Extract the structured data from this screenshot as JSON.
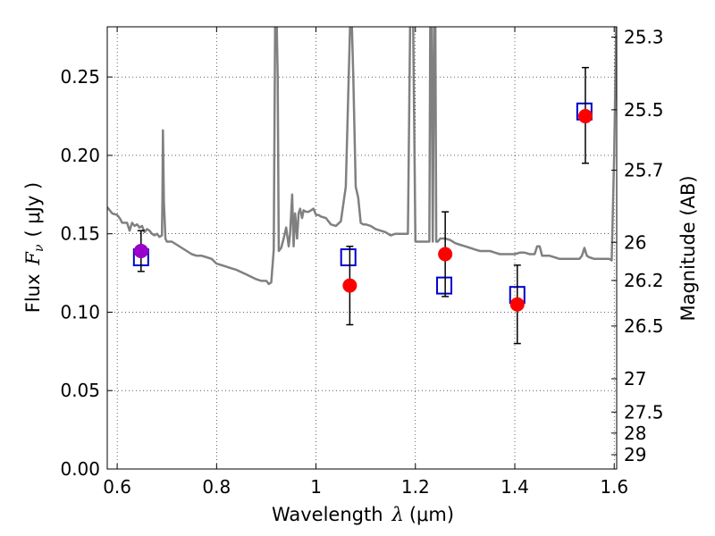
{
  "chart_data": {
    "type": "scatter",
    "xlabel_prefix": "Wavelength",
    "xlabel_symbol": "λ",
    "xlabel_unit": "(μm)",
    "ylabel_prefix": "Flux",
    "ylabel_symbol": "F",
    "ylabel_sub": "ν",
    "ylabel_unit": "( μJy )",
    "y2label": "Magnitude (AB)",
    "xlim": [
      0.58,
      1.605
    ],
    "ylim": [
      0.0,
      0.282
    ],
    "grid": true,
    "x_ticks": [
      {
        "value": 0.6,
        "label": "0.6"
      },
      {
        "value": 0.8,
        "label": "0.8"
      },
      {
        "value": 1.0,
        "label": "1"
      },
      {
        "value": 1.2,
        "label": "1.2"
      },
      {
        "value": 1.4,
        "label": "1.4"
      },
      {
        "value": 1.6,
        "label": "1.6"
      }
    ],
    "y_ticks": [
      {
        "value": 0.0,
        "label": "0.00"
      },
      {
        "value": 0.05,
        "label": "0.05"
      },
      {
        "value": 0.1,
        "label": "0.10"
      },
      {
        "value": 0.15,
        "label": "0.15"
      },
      {
        "value": 0.2,
        "label": "0.20"
      },
      {
        "value": 0.25,
        "label": "0.25"
      }
    ],
    "y2_ticks": [
      {
        "mag": 25.3,
        "label": "25.3"
      },
      {
        "mag": 25.5,
        "label": "25.5"
      },
      {
        "mag": 25.7,
        "label": "25.7"
      },
      {
        "mag": 26.0,
        "label": "26"
      },
      {
        "mag": 26.2,
        "label": "26.2"
      },
      {
        "mag": 26.5,
        "label": "26.5"
      },
      {
        "mag": 27.0,
        "label": "27"
      },
      {
        "mag": 27.5,
        "label": "27.5"
      },
      {
        "mag": 28.0,
        "label": "28"
      },
      {
        "mag": 29.0,
        "label": "29"
      }
    ],
    "model_spectrum": {
      "color": "#808080",
      "x": [
        0.58,
        0.59,
        0.6,
        0.605,
        0.61,
        0.62,
        0.625,
        0.63,
        0.635,
        0.64,
        0.645,
        0.65,
        0.655,
        0.66,
        0.665,
        0.67,
        0.675,
        0.68,
        0.685,
        0.69,
        0.691,
        0.692,
        0.694,
        0.697,
        0.7,
        0.71,
        0.72,
        0.73,
        0.74,
        0.75,
        0.76,
        0.77,
        0.78,
        0.79,
        0.8,
        0.82,
        0.84,
        0.86,
        0.88,
        0.89,
        0.9,
        0.905,
        0.91,
        0.915,
        0.918,
        0.92,
        0.923,
        0.925,
        0.93,
        0.935,
        0.94,
        0.945,
        0.948,
        0.952,
        0.955,
        0.958,
        0.962,
        0.965,
        0.968,
        0.972,
        0.975,
        0.98,
        0.985,
        0.99,
        0.995,
        1.0,
        1.005,
        1.01,
        1.02,
        1.03,
        1.04,
        1.05,
        1.06,
        1.065,
        1.07,
        1.072,
        1.075,
        1.08,
        1.085,
        1.09,
        1.095,
        1.1,
        1.11,
        1.12,
        1.13,
        1.14,
        1.15,
        1.16,
        1.17,
        1.18,
        1.185,
        1.19,
        1.195,
        1.2,
        1.205,
        1.21,
        1.22,
        1.228,
        1.23,
        1.232,
        1.235,
        1.238,
        1.24,
        1.242,
        1.245,
        1.25,
        1.26,
        1.27,
        1.28,
        1.29,
        1.3,
        1.31,
        1.32,
        1.33,
        1.34,
        1.35,
        1.36,
        1.37,
        1.38,
        1.39,
        1.4,
        1.41,
        1.42,
        1.43,
        1.44,
        1.445,
        1.45,
        1.455,
        1.46,
        1.47,
        1.48,
        1.49,
        1.5,
        1.51,
        1.52,
        1.53,
        1.535,
        1.54,
        1.545,
        1.55,
        1.56,
        1.57,
        1.58,
        1.59,
        1.595,
        1.6,
        1.605
      ],
      "y": [
        0.167,
        0.163,
        0.162,
        0.16,
        0.157,
        0.157,
        0.152,
        0.157,
        0.155,
        0.156,
        0.154,
        0.155,
        0.151,
        0.153,
        0.152,
        0.15,
        0.149,
        0.15,
        0.148,
        0.149,
        0.17,
        0.216,
        0.17,
        0.147,
        0.145,
        0.145,
        0.143,
        0.141,
        0.139,
        0.137,
        0.136,
        0.136,
        0.135,
        0.134,
        0.131,
        0.129,
        0.127,
        0.124,
        0.121,
        0.12,
        0.12,
        0.118,
        0.119,
        0.14,
        0.3,
        0.3,
        0.25,
        0.139,
        0.141,
        0.147,
        0.154,
        0.142,
        0.15,
        0.175,
        0.142,
        0.163,
        0.147,
        0.163,
        0.166,
        0.16,
        0.165,
        0.164,
        0.164,
        0.165,
        0.166,
        0.162,
        0.162,
        0.161,
        0.16,
        0.156,
        0.155,
        0.158,
        0.18,
        0.24,
        0.3,
        0.285,
        0.25,
        0.18,
        0.173,
        0.157,
        0.156,
        0.156,
        0.155,
        0.153,
        0.152,
        0.151,
        0.149,
        0.15,
        0.15,
        0.15,
        0.15,
        0.3,
        0.3,
        0.145,
        0.145,
        0.145,
        0.145,
        0.145,
        0.3,
        0.3,
        0.145,
        0.3,
        0.3,
        0.145,
        0.145,
        0.147,
        0.147,
        0.146,
        0.144,
        0.143,
        0.142,
        0.141,
        0.14,
        0.139,
        0.139,
        0.139,
        0.138,
        0.137,
        0.137,
        0.137,
        0.137,
        0.138,
        0.138,
        0.137,
        0.137,
        0.142,
        0.142,
        0.136,
        0.136,
        0.136,
        0.135,
        0.134,
        0.134,
        0.134,
        0.134,
        0.134,
        0.136,
        0.141,
        0.136,
        0.135,
        0.134,
        0.134,
        0.134,
        0.134,
        0.133,
        0.2,
        0.3
      ]
    },
    "series": [
      {
        "marker": "open-square",
        "color": "#0000cc",
        "x": [
          0.648,
          1.065,
          1.258,
          1.405,
          1.54
        ],
        "y": [
          0.135,
          0.135,
          0.117,
          0.111,
          0.228
        ]
      },
      {
        "marker": "filled-circle",
        "color": "#ff0000",
        "x": [
          0.648,
          1.068,
          1.26,
          1.405,
          1.542
        ],
        "y": [
          0.139,
          0.117,
          0.137,
          0.105,
          0.225
        ],
        "err_low": [
          0.126,
          0.092,
          0.11,
          0.08,
          0.195
        ],
        "err_high": [
          0.152,
          0.142,
          0.164,
          0.13,
          0.256
        ]
      }
    ],
    "highlight_point": {
      "x": 0.648,
      "y": 0.139,
      "color": "#9900cc"
    }
  }
}
